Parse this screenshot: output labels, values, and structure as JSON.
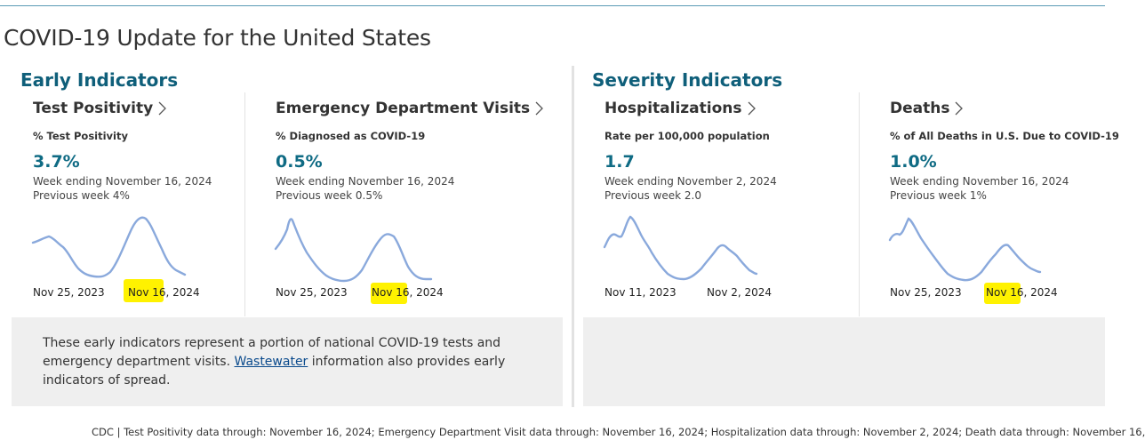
{
  "page": {
    "title": "COVID-19 Update for the United States"
  },
  "sections": {
    "early": {
      "heading": "Early Indicators"
    },
    "severity": {
      "heading": "Severity Indicators"
    }
  },
  "cards": {
    "test_positivity": {
      "title": "Test Positivity",
      "metric_label": "% Test Positivity",
      "value": "3.7%",
      "week": "Week ending November 16, 2024",
      "previous": "Previous week 4%",
      "start_date": "Nov 25, 2023",
      "end_date": "Nov 16, 2024"
    },
    "ed_visits": {
      "title": "Emergency Department Visits",
      "metric_label": "% Diagnosed as COVID-19",
      "value": "0.5%",
      "week": "Week ending November 16, 2024",
      "previous": "Previous week 0.5%",
      "start_date": "Nov 25, 2023",
      "end_date": "Nov 16, 2024"
    },
    "hospitalizations": {
      "title": "Hospitalizations",
      "metric_label": "Rate per 100,000 population",
      "value": "1.7",
      "week": "Week ending November 2, 2024",
      "previous": "Previous week 2.0",
      "start_date": "Nov 11, 2023",
      "end_date": "Nov 2, 2024"
    },
    "deaths": {
      "title": "Deaths",
      "metric_label": "% of All Deaths in U.S. Due to COVID-19",
      "value": "1.0%",
      "week": "Week ending November 16, 2024",
      "previous": "Previous week 1%",
      "start_date": "Nov 25, 2023",
      "end_date": "Nov 16, 2024"
    }
  },
  "note": {
    "before": "These early indicators represent a portion of national COVID-19 tests and emergency department visits. ",
    "link": "Wastewater",
    "after": " information also provides early indicators of spread."
  },
  "footer": "CDC | Test Positivity data through: November 16, 2024; Emergency Department Visit data through: November 16, 2024; Hospitalization data through: November 2, 2024; Death data through: November 16,",
  "colors": {
    "accent": "#0f6b84",
    "sparkline": "#8aa9dc",
    "highlight": "#fff200"
  }
}
